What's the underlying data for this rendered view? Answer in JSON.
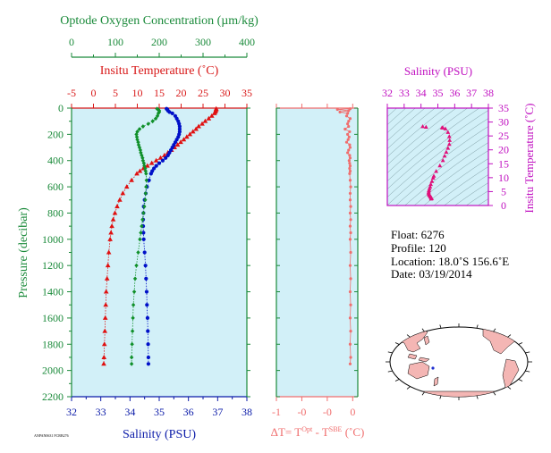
{
  "chart_data": [
    {
      "type": "scatter",
      "panel": "profiles",
      "ylabel": "Pressure (decibar)",
      "y_ticks": [
        0,
        200,
        400,
        600,
        800,
        1000,
        1200,
        1400,
        1600,
        1800,
        2000,
        2200
      ],
      "ylim": [
        0,
        2200
      ],
      "axes": {
        "oxygen": {
          "title": "Optode Oxygen Concentration (µm/kg)",
          "ticks": [
            0,
            100,
            200,
            300,
            400
          ],
          "range": [
            0,
            400
          ],
          "color": "#1a8a3a"
        },
        "temperature": {
          "title": "Insitu Temperature (˚C)",
          "ticks": [
            -5,
            0,
            5,
            10,
            15,
            20,
            25,
            30,
            35
          ],
          "range": [
            -5,
            35
          ],
          "color": "#d81818"
        },
        "salinity": {
          "title": "Salinity (PSU)",
          "ticks": [
            32,
            33,
            34,
            35,
            36,
            37,
            38
          ],
          "range": [
            32,
            38
          ],
          "color": "#0a1aa8"
        }
      },
      "series": [
        {
          "axis": "temperature",
          "marker": "triangle",
          "color": "#e01010",
          "pressure": [
            5,
            10,
            20,
            30,
            40,
            60,
            80,
            100,
            120,
            140,
            160,
            180,
            200,
            220,
            240,
            260,
            280,
            300,
            320,
            340,
            360,
            380,
            400,
            420,
            440,
            460,
            480,
            500,
            550,
            600,
            650,
            700,
            750,
            800,
            850,
            900,
            950,
            1000,
            1100,
            1200,
            1300,
            1400,
            1500,
            1600,
            1700,
            1800,
            1900,
            1950
          ],
          "values": [
            28.0,
            28.0,
            27.9,
            27.8,
            27.6,
            27.0,
            26.3,
            25.5,
            24.8,
            24.0,
            23.4,
            22.7,
            22.0,
            21.3,
            20.6,
            19.9,
            19.2,
            18.5,
            17.8,
            17.0,
            16.2,
            15.3,
            14.3,
            13.3,
            12.3,
            11.4,
            10.6,
            9.9,
            8.7,
            7.6,
            6.7,
            6.0,
            5.4,
            4.9,
            4.5,
            4.2,
            4.0,
            3.8,
            3.5,
            3.3,
            3.1,
            2.9,
            2.8,
            2.7,
            2.6,
            2.5,
            2.4,
            2.35
          ]
        },
        {
          "axis": "salinity",
          "marker": "circle",
          "color": "#0010c8",
          "pressure": [
            5,
            10,
            20,
            30,
            40,
            60,
            80,
            100,
            120,
            140,
            160,
            180,
            200,
            220,
            240,
            260,
            280,
            300,
            320,
            340,
            360,
            380,
            400,
            420,
            440,
            460,
            480,
            500,
            550,
            600,
            650,
            700,
            750,
            800,
            850,
            900,
            950,
            1000,
            1100,
            1200,
            1300,
            1400,
            1500,
            1600,
            1700,
            1800,
            1900,
            1950
          ],
          "values": [
            35.25,
            35.28,
            35.3,
            35.35,
            35.45,
            35.55,
            35.6,
            35.65,
            35.68,
            35.7,
            35.7,
            35.7,
            35.68,
            35.65,
            35.6,
            35.55,
            35.5,
            35.45,
            35.4,
            35.35,
            35.3,
            35.22,
            35.12,
            35.0,
            34.9,
            34.82,
            34.76,
            34.72,
            34.65,
            34.58,
            34.54,
            34.5,
            34.47,
            34.46,
            34.45,
            34.45,
            34.46,
            34.47,
            34.5,
            34.53,
            34.55,
            34.57,
            34.58,
            34.6,
            34.61,
            34.62,
            34.63,
            34.63
          ]
        },
        {
          "axis": "oxygen",
          "marker": "diamond",
          "color": "#10902a",
          "pressure": [
            5,
            10,
            20,
            30,
            40,
            60,
            80,
            100,
            120,
            140,
            160,
            180,
            200,
            220,
            240,
            260,
            280,
            300,
            320,
            340,
            360,
            380,
            400,
            420,
            440,
            460,
            480,
            500,
            550,
            600,
            650,
            700,
            750,
            800,
            850,
            900,
            950,
            1000,
            1100,
            1200,
            1300,
            1400,
            1500,
            1600,
            1700,
            1800,
            1900,
            1950
          ],
          "values": [
            195,
            198,
            200,
            200,
            198,
            196,
            192,
            185,
            175,
            163,
            155,
            150,
            148,
            149,
            150,
            152,
            153,
            155,
            157,
            158,
            160,
            162,
            163,
            165,
            166,
            168,
            169,
            170,
            171,
            170,
            169,
            168,
            166,
            164,
            162,
            160,
            158,
            156,
            152,
            148,
            145,
            143,
            141,
            140,
            139,
            138,
            137,
            137
          ]
        }
      ]
    },
    {
      "type": "scatter",
      "panel": "delta-temperature",
      "xlabel": "ΔT= T",
      "xlabel_sup1": "Opt",
      "xlabel_mid": " - T",
      "xlabel_sup2": "SBE",
      "xlabel_end": " (˚C)",
      "x_tick_labels": [
        "-1",
        "-0",
        "-0",
        "0"
      ],
      "x_ticks": [
        -1.5,
        -1.0,
        -0.5,
        0
      ],
      "xlim": [
        -1.5,
        0.1
      ],
      "color": "#f06e6e",
      "pressure": [
        5,
        10,
        20,
        30,
        40,
        60,
        80,
        100,
        120,
        140,
        160,
        180,
        200,
        220,
        240,
        260,
        280,
        300,
        320,
        340,
        360,
        380,
        400,
        420,
        440,
        460,
        480,
        500,
        550,
        600,
        650,
        700,
        750,
        800,
        850,
        900,
        950,
        1000,
        1100,
        1200,
        1300,
        1400,
        1500,
        1600,
        1700,
        1800,
        1900,
        1950
      ],
      "values": [
        -0.05,
        -0.3,
        -0.08,
        -0.25,
        -0.1,
        -0.12,
        -0.05,
        -0.08,
        -0.1,
        -0.08,
        -0.15,
        -0.06,
        -0.1,
        -0.07,
        -0.09,
        -0.12,
        -0.06,
        -0.05,
        -0.08,
        -0.1,
        -0.06,
        -0.05,
        -0.07,
        -0.06,
        -0.05,
        -0.06,
        -0.05,
        -0.06,
        -0.05,
        -0.04,
        -0.05,
        -0.05,
        -0.04,
        -0.05,
        -0.04,
        -0.05,
        -0.04,
        -0.05,
        -0.04,
        -0.05,
        -0.04,
        -0.05,
        -0.04,
        -0.05,
        -0.04,
        -0.05,
        -0.04,
        -0.05
      ]
    },
    {
      "type": "scatter",
      "panel": "ts-diagram",
      "title": "Salinity (PSU)",
      "ylabel": "Insitu Temperature (˚C)",
      "x_ticks": [
        32,
        33,
        34,
        35,
        36,
        37,
        38
      ],
      "xlim": [
        32,
        38
      ],
      "y_ticks": [
        0,
        5,
        10,
        15,
        20,
        25,
        30,
        35
      ],
      "ylim": [
        0,
        35
      ],
      "color": "#e0107a",
      "salinity": [
        35.25,
        35.3,
        35.45,
        35.6,
        35.68,
        35.7,
        35.68,
        35.6,
        35.5,
        35.4,
        35.3,
        35.12,
        34.9,
        34.76,
        34.72,
        34.65,
        34.58,
        34.54,
        34.5,
        34.47,
        34.46,
        34.45,
        34.47,
        34.5,
        34.53,
        34.55,
        34.57,
        34.6,
        34.62,
        34.63,
        34.6,
        34.1,
        34.3
      ],
      "temperature": [
        28.0,
        27.9,
        27.6,
        26.3,
        24.8,
        23.4,
        22.0,
        20.6,
        19.2,
        17.8,
        16.2,
        14.3,
        12.3,
        10.6,
        9.9,
        8.7,
        7.6,
        6.7,
        6.0,
        5.4,
        4.9,
        4.5,
        4.0,
        3.8,
        3.5,
        3.3,
        3.1,
        2.9,
        2.7,
        2.5,
        2.4,
        28.4,
        28.2
      ]
    }
  ],
  "left_footnote": "ANPAN0631 FCRB276",
  "float_info": {
    "float": "Float:  6276",
    "profile": "Profile:  120",
    "location": "Location:  18.0˚S  156.6˚E",
    "date": "Date:  03/19/2014"
  },
  "map": {
    "ocean_color": "#ffffff",
    "land_color": "#f4b6b4",
    "marker_color": "#2030d0"
  }
}
